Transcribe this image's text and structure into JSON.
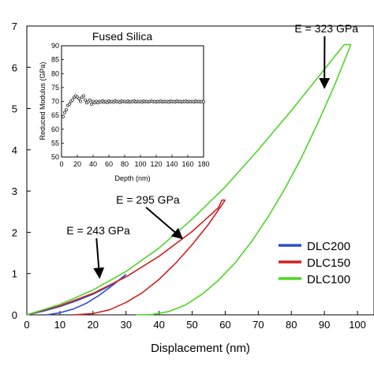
{
  "chart_data": [
    {
      "type": "line",
      "xlabel": "Displacement (nm)",
      "ylabel": "",
      "xlim": [
        0,
        105
      ],
      "ylim": [
        0,
        7
      ],
      "x_ticks": [
        0,
        10,
        20,
        30,
        40,
        50,
        60,
        70,
        80,
        90,
        100
      ],
      "y_ticks": [
        0,
        1,
        2,
        3,
        4,
        5,
        6,
        7
      ],
      "grid": false,
      "legend_position": "bottom-right",
      "series": [
        {
          "name": "DLC200",
          "color": "#2b4fcf",
          "loading": [
            [
              0,
              0
            ],
            [
              5,
              0.09
            ],
            [
              10,
              0.2
            ],
            [
              15,
              0.34
            ],
            [
              20,
              0.5
            ],
            [
              25,
              0.7
            ],
            [
              29,
              0.9
            ],
            [
              30,
              0.98
            ]
          ],
          "unloading": [
            [
              30,
              0.98
            ],
            [
              26,
              0.72
            ],
            [
              22,
              0.48
            ],
            [
              18,
              0.28
            ],
            [
              14,
              0.14
            ],
            [
              10,
              0.05
            ],
            [
              6,
              0
            ]
          ]
        },
        {
          "name": "DLC150",
          "color": "#d42020",
          "loading": [
            [
              0,
              0
            ],
            [
              10,
              0.22
            ],
            [
              20,
              0.52
            ],
            [
              30,
              0.92
            ],
            [
              40,
              1.42
            ],
            [
              50,
              2.02
            ],
            [
              58,
              2.6
            ],
            [
              59,
              2.78
            ],
            [
              60,
              2.78
            ]
          ],
          "unloading": [
            [
              60,
              2.78
            ],
            [
              55,
              2.2
            ],
            [
              50,
              1.7
            ],
            [
              45,
              1.25
            ],
            [
              40,
              0.86
            ],
            [
              35,
              0.54
            ],
            [
              30,
              0.3
            ],
            [
              25,
              0.12
            ],
            [
              20,
              0.03
            ],
            [
              14,
              0
            ]
          ]
        },
        {
          "name": "DLC100",
          "color": "#4cd626",
          "loading": [
            [
              0,
              0
            ],
            [
              10,
              0.25
            ],
            [
              20,
              0.6
            ],
            [
              30,
              1.05
            ],
            [
              40,
              1.62
            ],
            [
              50,
              2.32
            ],
            [
              60,
              3.1
            ],
            [
              70,
              4.0
            ],
            [
              80,
              4.95
            ],
            [
              90,
              5.95
            ],
            [
              96,
              6.55
            ],
            [
              97,
              6.55
            ],
            [
              98,
              6.55
            ]
          ],
          "unloading": [
            [
              98,
              6.55
            ],
            [
              93,
              5.55
            ],
            [
              88,
              4.65
            ],
            [
              83,
              3.8
            ],
            [
              78,
              3.05
            ],
            [
              73,
              2.38
            ],
            [
              68,
              1.78
            ],
            [
              63,
              1.26
            ],
            [
              58,
              0.84
            ],
            [
              53,
              0.5
            ],
            [
              48,
              0.24
            ],
            [
              43,
              0.08
            ],
            [
              38,
              0.01
            ],
            [
              33,
              0
            ]
          ]
        }
      ],
      "annotations": [
        {
          "text": "E = 323 GPa",
          "x": 81,
          "y": 6.85,
          "arrow_to": [
            90,
            5.5
          ]
        },
        {
          "text": "E = 295 GPa",
          "x": 27,
          "y": 2.7,
          "arrow_to": [
            47,
            1.85
          ]
        },
        {
          "text": "E = 243 GPa",
          "x": 12,
          "y": 1.95,
          "arrow_to": [
            22,
            0.9
          ]
        }
      ]
    },
    {
      "type": "scatter",
      "title": "Fused Silica",
      "xlabel": "Depth (nm)",
      "ylabel": "Reduced Modulus (GPa)",
      "xlim": [
        0,
        180
      ],
      "ylim": [
        50,
        90
      ],
      "x_ticks": [
        0,
        20,
        40,
        60,
        80,
        100,
        120,
        140,
        160,
        180
      ],
      "y_ticks": [
        50,
        55,
        60,
        65,
        70,
        75,
        80,
        85,
        90
      ],
      "points_x": [
        2,
        4,
        6,
        8,
        10,
        12,
        14,
        16,
        18,
        20,
        22,
        24,
        26,
        28,
        30,
        32,
        34,
        36,
        38,
        40,
        42,
        44,
        46,
        48,
        50,
        52,
        54,
        56,
        58,
        60,
        62,
        64,
        66,
        68,
        70,
        72,
        74,
        76,
        78,
        80,
        82,
        84,
        86,
        88,
        90,
        92,
        94,
        96,
        98,
        100,
        102,
        104,
        106,
        108,
        110,
        112,
        114,
        116,
        118,
        120,
        122,
        124,
        126,
        128,
        130,
        132,
        134,
        136,
        138,
        140,
        142,
        144,
        146,
        148,
        150,
        152,
        154,
        156,
        158,
        160,
        162,
        164,
        166,
        168,
        170,
        172,
        174,
        176,
        178,
        180
      ],
      "points_y": [
        64.5,
        66,
        67,
        68.5,
        69,
        70,
        70.5,
        71.5,
        72,
        71.5,
        71,
        70,
        71.5,
        72,
        70.5,
        69.5,
        70,
        70.5,
        69,
        70,
        69.5,
        70,
        69.5,
        70,
        69.8,
        70.2,
        69.7,
        70,
        69.6,
        70.1,
        69.8,
        70,
        69.7,
        70.2,
        69.9,
        70,
        69.6,
        70.1,
        69.9,
        70,
        69.8,
        70.1,
        69.7,
        70,
        69.9,
        70.2,
        69.8,
        70,
        69.9,
        70,
        69.7,
        70.1,
        69.9,
        70,
        69.8,
        70,
        70.1,
        69.9,
        70,
        69.8,
        70,
        69.9,
        70.1,
        69.8,
        70,
        69.9,
        70,
        69.7,
        70.1,
        69.9,
        70,
        69.8,
        70.1,
        69.9,
        70,
        69.8,
        70,
        69.9,
        70.1,
        69.8,
        70,
        69.9,
        70,
        69.8,
        70.1,
        69.9,
        70,
        69.8,
        70,
        69.9
      ]
    }
  ]
}
